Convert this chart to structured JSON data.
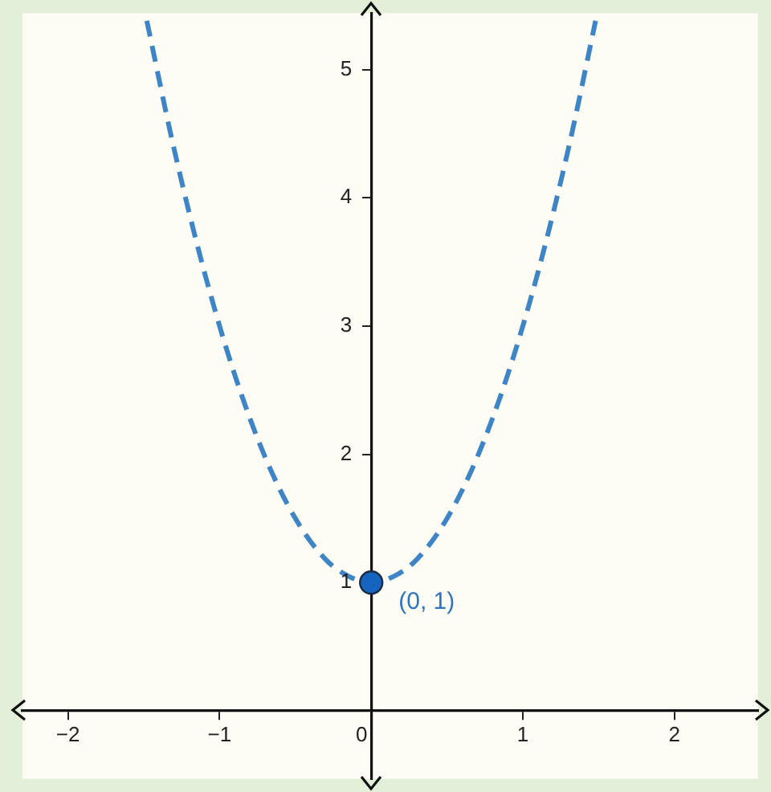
{
  "chart_data": {
    "type": "line",
    "xlim": [
      -2.3,
      2.55
    ],
    "ylim": [
      -0.53,
      5.44
    ],
    "xticks": [
      -2,
      -1,
      0,
      1,
      2
    ],
    "yticks": [
      1,
      2,
      3,
      4,
      5
    ],
    "grid": false,
    "legend": false,
    "series": [
      {
        "color": "#3d85c6",
        "line_style": "dashed",
        "marker": "none",
        "x": [
          -1.48,
          -1.3,
          -1.1,
          -0.9,
          -0.7,
          -0.5,
          -0.3,
          -0.15,
          0,
          0.15,
          0.3,
          0.5,
          0.7,
          0.9,
          1.1,
          1.3,
          1.48
        ],
        "values": [
          5.38,
          4.38,
          3.42,
          2.62,
          1.98,
          1.5,
          1.18,
          1.05,
          1,
          1.05,
          1.18,
          1.5,
          1.98,
          2.62,
          3.42,
          4.38,
          5.38
        ]
      },
      {
        "type": "scatter",
        "color": "#1565c0",
        "marker": "circle",
        "x": [
          0
        ],
        "values": [
          1
        ]
      }
    ],
    "annotations": [
      {
        "text": "(0, 1)",
        "x": 0,
        "y": 1
      }
    ]
  }
}
